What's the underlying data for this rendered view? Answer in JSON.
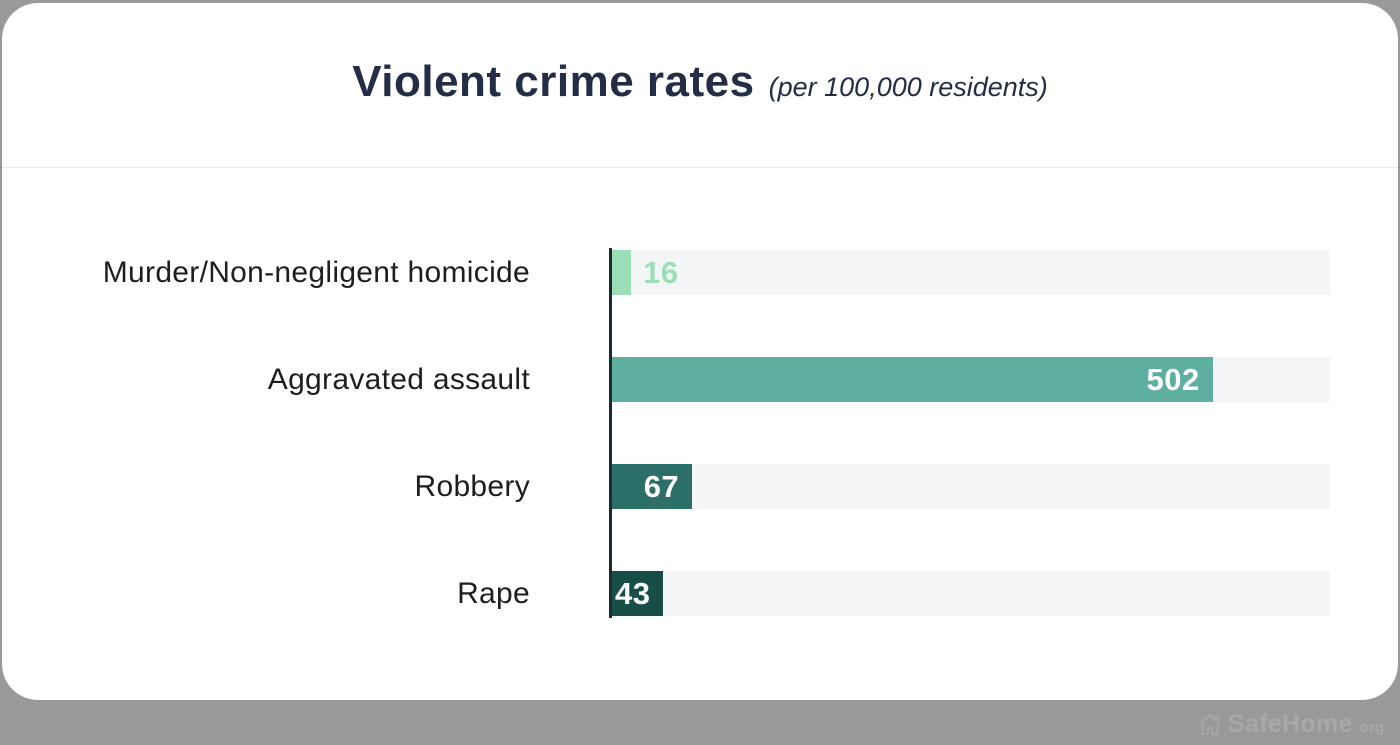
{
  "page": {
    "background_color": "#97999b",
    "card_color": "#ffffff"
  },
  "header": {
    "title": "Violent crime rates",
    "subtitle": "(per 100,000 residents)"
  },
  "chart_data": {
    "type": "bar",
    "orientation": "horizontal",
    "title": "Violent crime rates",
    "subtitle": "(per 100,000 residents)",
    "categories": [
      "Murder/Non-negligent homicide",
      "Aggravated assault",
      "Robbery",
      "Rape"
    ],
    "values": [
      16,
      502,
      67,
      43
    ],
    "bar_colors": [
      "#9bdfb7",
      "#5fafa0",
      "#2b6f68",
      "#174f48"
    ],
    "value_label_positions": [
      "outside",
      "inside",
      "inside",
      "inside"
    ],
    "value_label_inside_color": "#ffffff",
    "xlim": [
      0,
      600
    ],
    "track_color": "#f4f5f6",
    "axis_color": "#1c2b33",
    "grid": false,
    "legend": false
  },
  "watermark": {
    "brand": "SafeHome",
    "tld": ".org",
    "icon": "house-icon"
  }
}
